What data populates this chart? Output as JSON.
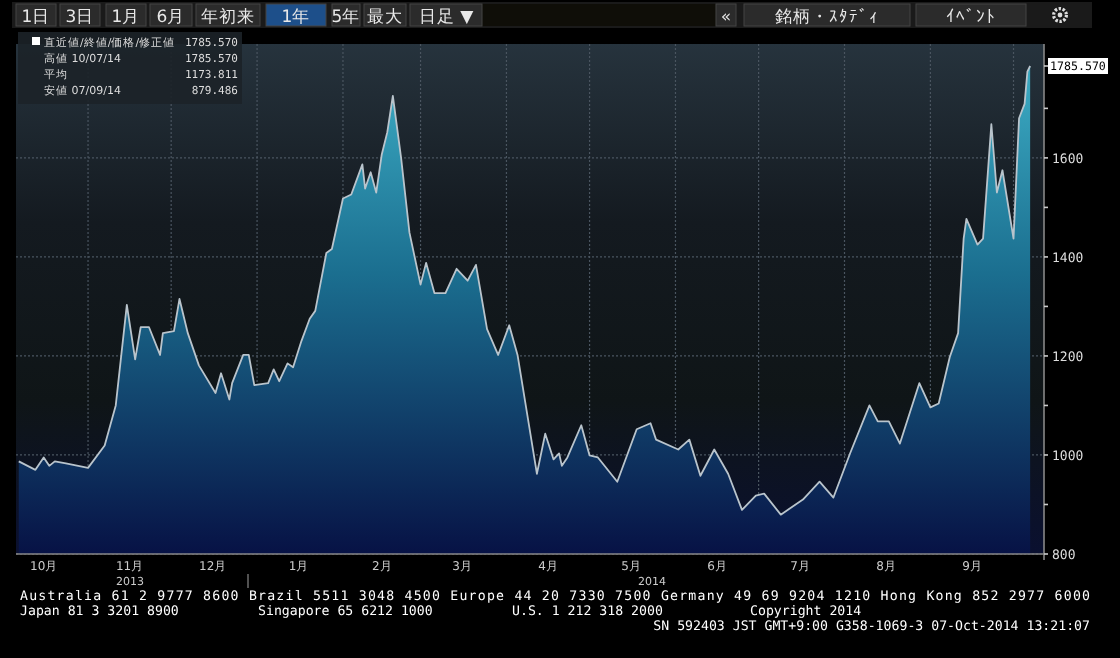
{
  "chart_data": {
    "type": "area",
    "color": "#1b6f90",
    "x": [
      "2013-10-07",
      "2013-10-13",
      "2013-10-16",
      "2013-10-18",
      "2013-10-20",
      "2013-10-24",
      "2013-11-01",
      "2013-11-07",
      "2013-11-11",
      "2013-11-15",
      "2013-11-18",
      "2013-11-20",
      "2013-11-23",
      "2013-11-27",
      "2013-11-28",
      "2013-12-02",
      "2013-12-04",
      "2013-12-07",
      "2013-12-11",
      "2013-12-17",
      "2013-12-19",
      "2013-12-22",
      "2013-12-23",
      "2013-12-27",
      "2013-12-29",
      "2013-12-31",
      "2014-01-05",
      "2014-01-07",
      "2014-01-09",
      "2014-01-12",
      "2014-01-14",
      "2014-01-17",
      "2014-01-20",
      "2014-01-22",
      "2014-01-26",
      "2014-01-28",
      "2014-02-01",
      "2014-02-04",
      "2014-02-08",
      "2014-02-09",
      "2014-02-11",
      "2014-02-13",
      "2014-02-15",
      "2014-02-17",
      "2014-02-19",
      "2014-02-22",
      "2014-02-25",
      "2014-03-01",
      "2014-03-03",
      "2014-03-06",
      "2014-03-10",
      "2014-03-14",
      "2014-03-18",
      "2014-03-21",
      "2014-03-25",
      "2014-03-29",
      "2014-04-02",
      "2014-04-05",
      "2014-04-12",
      "2014-04-15",
      "2014-04-18",
      "2014-04-20",
      "2014-04-21",
      "2014-04-23",
      "2014-04-28",
      "2014-05-01",
      "2014-05-04",
      "2014-05-11",
      "2014-05-18",
      "2014-05-23",
      "2014-05-25",
      "2014-06-02",
      "2014-06-06",
      "2014-06-10",
      "2014-06-15",
      "2014-06-20",
      "2014-06-25",
      "2014-06-30",
      "2014-07-03",
      "2014-07-09",
      "2014-07-17",
      "2014-07-23",
      "2014-07-28",
      "2014-08-03",
      "2014-08-10",
      "2014-08-13",
      "2014-08-17",
      "2014-08-21",
      "2014-08-28",
      "2014-09-01",
      "2014-09-04",
      "2014-09-08",
      "2014-09-11",
      "2014-09-13",
      "2014-09-14",
      "2014-09-18",
      "2014-09-20",
      "2014-09-23",
      "2014-09-25",
      "2014-09-27",
      "2014-10-01",
      "2014-10-03",
      "2014-10-05",
      "2014-10-06",
      "2014-10-07"
    ],
    "values": [
      987,
      970,
      995,
      978,
      987,
      983,
      974,
      1019,
      1100,
      1303,
      1193,
      1258,
      1258,
      1202,
      1246,
      1250,
      1315,
      1246,
      1181,
      1125,
      1165,
      1112,
      1145,
      1202,
      1202,
      1141,
      1145,
      1173,
      1149,
      1185,
      1177,
      1230,
      1275,
      1291,
      1408,
      1416,
      1518,
      1526,
      1587,
      1538,
      1571,
      1530,
      1607,
      1652,
      1725,
      1599,
      1449,
      1344,
      1388,
      1327,
      1327,
      1376,
      1352,
      1384,
      1254,
      1202,
      1262,
      1202,
      962,
      1043,
      991,
      1003,
      978,
      995,
      1060,
      999,
      995,
      946,
      1052,
      1064,
      1031,
      1011,
      1031,
      958,
      1011,
      962,
      889,
      918,
      922,
      879.486,
      910,
      946,
      914,
      1003,
      1100,
      1068,
      1068,
      1023,
      1145,
      1096,
      1104,
      1198,
      1246,
      1437,
      1477,
      1425,
      1437,
      1668,
      1530,
      1575,
      1437,
      1680,
      1709,
      1774,
      1785.57
    ],
    "xlim": [
      "2013-10-06",
      "2014-10-12"
    ],
    "xticks": [
      {
        "value": "2013-10-16",
        "label": "10月"
      },
      {
        "value": "2013-11-16",
        "label": "11月"
      },
      {
        "value": "2013-12-16",
        "label": "12月"
      },
      {
        "value": "2014-01-16",
        "label": "1月"
      },
      {
        "value": "2014-02-15",
        "label": "2月"
      },
      {
        "value": "2014-03-16",
        "label": "3月"
      },
      {
        "value": "2014-04-16",
        "label": "4月"
      },
      {
        "value": "2014-05-16",
        "label": "5月"
      },
      {
        "value": "2014-06-16",
        "label": "6月"
      },
      {
        "value": "2014-07-16",
        "label": "7月"
      },
      {
        "value": "2014-08-16",
        "label": "8月"
      },
      {
        "value": "2014-09-16",
        "label": "9月"
      }
    ],
    "ylim": [
      800,
      1830
    ],
    "yticks": [
      800,
      {
        "value": 900,
        "label": null
      },
      1000,
      {
        "value": 1100,
        "label": null
      },
      1200,
      {
        "value": 1300,
        "label": null
      },
      1400,
      {
        "value": 1500,
        "label": null
      },
      1600,
      {
        "value": 1700,
        "label": null
      },
      {
        "value": 1785.57,
        "label": "1785.570"
      }
    ],
    "grid": true,
    "annotations": [
      "1日",
      "3日",
      "1月",
      "6月",
      "年初来",
      "1年",
      "5年",
      "最大",
      "日足 ▼",
      "«",
      "銘柄・ｽﾀﾃﾞｨ",
      "ｲﾍﾞﾝﾄ",
      "直近値/終値/価格/修正値",
      "高値 10/07/14",
      "平均",
      "安値 07/09/14",
      "1785.570",
      "1785.570",
      "1173.811",
      "879.486",
      "2013",
      "2014",
      "Australia 61 2 9777 8600 Brazil 5511 3048 4500 Europe 44 20 7330 7500 Germany 49 69 9204 1210 Hong Kong 852 2977 6000",
      "Japan 81 3 3201 8900",
      "Singapore 65 6212 1000",
      "U.S. 1 212 318 2000",
      "Copyright 2014",
      "SN 592403 JST  GMT+9:00 G358-1069-3 07-Oct-2014 13:21:07"
    ]
  }
}
